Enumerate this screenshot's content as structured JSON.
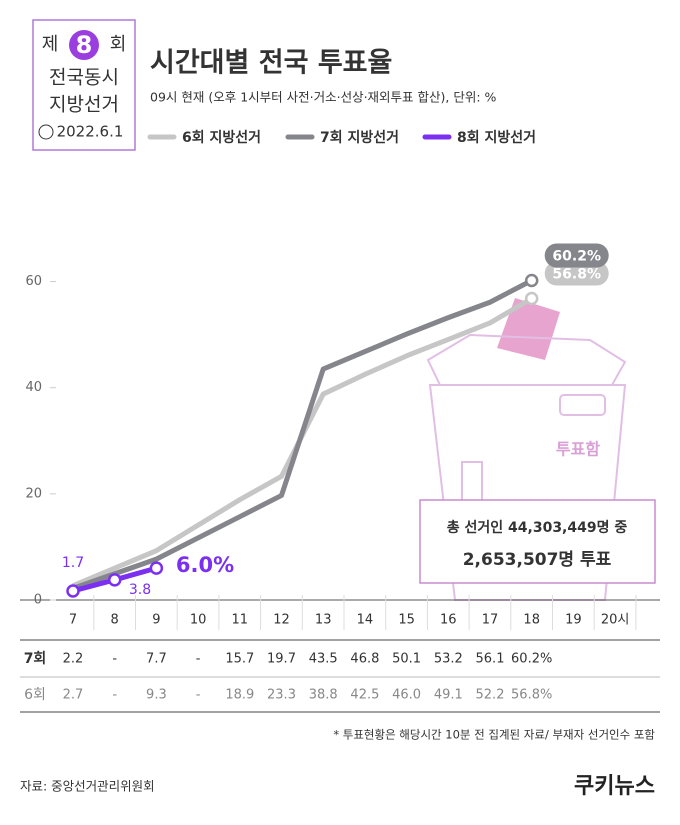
{
  "logo": {
    "line1": "제",
    "number": "8",
    "line1b": "회",
    "line2": "전국동시",
    "line3": "지방선거",
    "date": "2022.6.1"
  },
  "chart_data": {
    "type": "line",
    "title": "시간대별 전국 투표율",
    "subtitle": "09시 현재 (오후 1시부터 사전·거소·선상·재외투표 합산), 단위: %",
    "xlim": [
      6.5,
      20.8
    ],
    "xticks": [
      7,
      8,
      9,
      10,
      11,
      12,
      13,
      14,
      15,
      16,
      17,
      18,
      19,
      {
        "value": 20,
        "label": "20시"
      }
    ],
    "ylim": [
      0,
      65
    ],
    "yticks": [
      0,
      20,
      40,
      60
    ],
    "series": [
      {
        "name": "6회 지방선거",
        "color": "#c6c6c6",
        "x": [
          7,
          9,
          11,
          12,
          13,
          14,
          15,
          16,
          17,
          18
        ],
        "values": [
          2.7,
          9.3,
          18.9,
          23.3,
          38.8,
          42.5,
          46.0,
          49.1,
          52.2,
          56.8
        ],
        "value_labels": [
          null,
          null,
          null,
          null,
          null,
          null,
          null,
          null,
          null,
          "56.8%"
        ]
      },
      {
        "name": "7회 지방선거",
        "color": "#85858c",
        "x": [
          7,
          9,
          11,
          12,
          13,
          14,
          15,
          16,
          17,
          18
        ],
        "values": [
          2.2,
          7.7,
          15.7,
          19.7,
          43.5,
          46.8,
          50.1,
          53.2,
          56.1,
          60.2
        ],
        "value_labels": [
          null,
          null,
          null,
          null,
          null,
          null,
          null,
          null,
          null,
          "60.2%"
        ]
      },
      {
        "name": "8회 지방선거",
        "color": "#7b2ff0",
        "x": [
          7,
          8,
          9
        ],
        "values": [
          1.7,
          3.8,
          6.0
        ],
        "value_labels": [
          "1.7",
          "3.8",
          "6.0%"
        ]
      }
    ],
    "annotation": {
      "line1": "총 선거인 44,303,449명 중",
      "line2": "2,653,507명 투표"
    },
    "box_label": "투표함"
  },
  "table": {
    "rows": [
      {
        "label": "7회",
        "cells": [
          "2.2",
          "-",
          "7.7",
          "-",
          "15.7",
          "19.7",
          "43.5",
          "46.8",
          "50.1",
          "53.2",
          "56.1",
          "60.2%"
        ]
      },
      {
        "label": "6회",
        "cells": [
          "2.7",
          "-",
          "9.3",
          "-",
          "18.9",
          "23.3",
          "38.8",
          "42.5",
          "46.0",
          "49.1",
          "52.2",
          "56.8%"
        ]
      }
    ]
  },
  "footnote": "* 투표현황은 해당시간 10분 전 집계된 자료/ 부재자 선거인수 포함",
  "source": "자료: 중앙선거관리위원회",
  "brand": "쿠키뉴스"
}
